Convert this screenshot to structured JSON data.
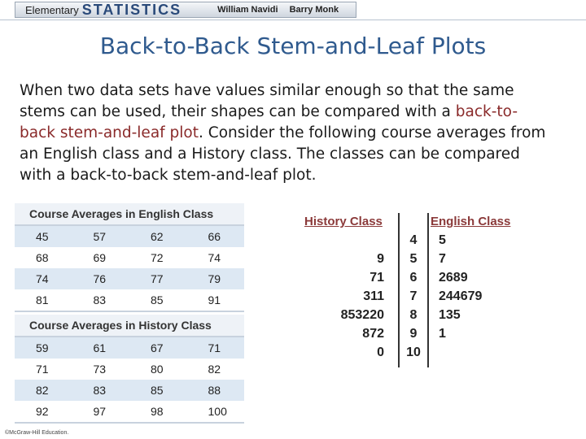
{
  "header": {
    "book_elementary": "Elementary",
    "book_statistics": "STATISTICS",
    "author1": "William Navidi",
    "author2": "Barry Monk"
  },
  "slide": {
    "title": "Back-to-Back Stem-and-Leaf Plots",
    "body_part1": "When two data sets have values similar enough so that the same stems can be used, their shapes can be compared with a ",
    "body_highlight": "back-to-back stem-and-leaf plot",
    "body_part2": ". Consider the following course averages from an English class and a History class. The classes can be compared with a back-to-back stem-and-leaf plot."
  },
  "english_table": {
    "caption": "Course Averages in English Class",
    "rows": [
      [
        "45",
        "57",
        "62",
        "66"
      ],
      [
        "68",
        "69",
        "72",
        "74"
      ],
      [
        "74",
        "76",
        "77",
        "79"
      ],
      [
        "81",
        "83",
        "85",
        "91"
      ]
    ]
  },
  "history_table": {
    "caption": "Course Averages in History Class",
    "rows": [
      [
        "59",
        "61",
        "67",
        "71"
      ],
      [
        "71",
        "73",
        "80",
        "82"
      ],
      [
        "82",
        "83",
        "85",
        "88"
      ],
      [
        "92",
        "97",
        "98",
        "100"
      ]
    ]
  },
  "stem_leaf": {
    "left_header": "History Class",
    "right_header": "English Class",
    "rows": [
      {
        "left": "",
        "stem": "4",
        "right": "5"
      },
      {
        "left": "9",
        "stem": "5",
        "right": "7"
      },
      {
        "left": "71",
        "stem": "6",
        "right": "2689"
      },
      {
        "left": "311",
        "stem": "7",
        "right": "244679"
      },
      {
        "left": "853220",
        "stem": "8",
        "right": "135"
      },
      {
        "left": "872",
        "stem": "9",
        "right": "1"
      },
      {
        "left": "0",
        "stem": "10",
        "right": ""
      }
    ]
  },
  "footer": {
    "copyright": "©McGraw-Hill Education."
  }
}
